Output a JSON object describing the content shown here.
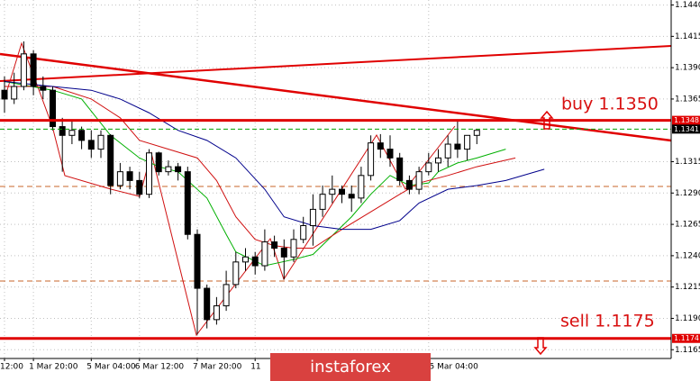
{
  "chart_data": {
    "type": "candlestick",
    "categories": [
      "12:00",
      null,
      null,
      "1 Mar 20:00",
      null,
      null,
      null,
      null,
      null,
      "5 Mar 04:00",
      null,
      null,
      null,
      null,
      "6 Mar 12:00",
      null,
      null,
      null,
      null,
      null,
      "7 Mar 20:00",
      null,
      null,
      null,
      null,
      null,
      "11",
      null,
      null,
      null,
      null,
      null,
      null,
      null,
      null,
      null,
      null,
      null,
      null,
      null,
      null,
      null,
      null,
      null,
      "15 Mar 04:00",
      null,
      null,
      null,
      null,
      null,
      null,
      null,
      null,
      null,
      null,
      null,
      null
    ],
    "open": [
      1.1372,
      1.1365,
      1.1375,
      1.1401,
      1.1375,
      1.1372,
      1.1343,
      1.1336,
      1.134,
      1.1332,
      1.1325,
      1.1336,
      1.1296,
      1.1307,
      1.13,
      1.1289,
      1.1322,
      1.1307,
      1.1311,
      1.1307,
      1.1257,
      1.1214,
      1.1189,
      1.12,
      1.1217,
      1.1235,
      1.1239,
      1.1232,
      1.1251,
      1.1246,
      1.1239,
      1.1253,
      1.1264,
      1.1277,
      1.1289,
      1.1293,
      1.1289,
      1.1286,
      1.1304,
      1.133,
      1.1325,
      1.1318,
      1.13,
      1.1293,
      1.1307,
      1.1314,
      1.1318,
      1.1329,
      1.1325,
      1.1336,
      null,
      null,
      null,
      null,
      null,
      null,
      null
    ],
    "high": [
      1.1383,
      1.1386,
      1.1411,
      1.1404,
      1.1383,
      1.1375,
      1.135,
      1.1347,
      1.1343,
      1.134,
      1.134,
      1.1337,
      1.1314,
      1.1311,
      1.1307,
      1.1325,
      1.1323,
      1.1316,
      1.1314,
      1.1311,
      1.1261,
      1.1217,
      1.1207,
      1.1228,
      1.1243,
      1.1246,
      1.1243,
      1.1261,
      1.1256,
      1.1253,
      1.1261,
      1.1271,
      1.1289,
      1.1296,
      1.1304,
      1.1296,
      1.1296,
      1.1311,
      1.1336,
      1.1337,
      1.1336,
      1.1322,
      1.1304,
      1.1311,
      1.1322,
      1.1325,
      1.1336,
      1.1347,
      1.1336,
      1.134,
      null,
      null,
      null,
      null,
      null,
      null,
      null
    ],
    "low": [
      1.1354,
      1.1361,
      1.1372,
      1.1368,
      1.1365,
      1.134,
      1.1307,
      1.1329,
      1.1325,
      1.1318,
      1.1318,
      1.1289,
      1.1293,
      1.1293,
      1.1286,
      1.1286,
      1.1304,
      1.1304,
      1.13,
      1.1253,
      1.1177,
      1.1182,
      1.1185,
      1.1196,
      1.1214,
      1.1228,
      1.1225,
      1.1228,
      1.1239,
      1.1221,
      1.1235,
      1.125,
      1.1248,
      1.1271,
      1.1282,
      1.1282,
      1.1275,
      1.1282,
      1.13,
      1.1318,
      1.1311,
      1.1296,
      1.1289,
      1.1289,
      1.1304,
      1.1307,
      1.1311,
      1.1318,
      1.1316,
      1.1329,
      null,
      null,
      null,
      null,
      null,
      null,
      null
    ],
    "close": [
      1.1365,
      1.1375,
      1.1401,
      1.1375,
      1.1372,
      1.1343,
      1.1336,
      1.134,
      1.1332,
      1.1325,
      1.1336,
      1.1296,
      1.1307,
      1.13,
      1.1289,
      1.1322,
      1.1307,
      1.1311,
      1.1307,
      1.1257,
      1.1214,
      1.1189,
      1.12,
      1.1217,
      1.1235,
      1.1239,
      1.1232,
      1.1251,
      1.1246,
      1.1239,
      1.1253,
      1.1264,
      1.1277,
      1.1289,
      1.1293,
      1.1289,
      1.1286,
      1.1304,
      1.133,
      1.1325,
      1.1318,
      1.13,
      1.1293,
      1.1307,
      1.1314,
      1.1318,
      1.1329,
      1.1325,
      1.1336,
      1.134,
      null,
      null,
      null,
      null,
      null,
      null,
      null
    ],
    "up_color": "#ffffff",
    "down_color": "#000000",
    "lines": [
      {
        "color": "#00b000",
        "x": [
          0,
          5,
          8,
          11,
          14,
          16,
          18,
          21,
          23,
          24,
          27,
          30,
          32,
          34,
          36,
          38,
          40,
          42,
          44,
          45,
          47,
          49,
          52
        ],
        "values": [
          1.1379,
          1.1372,
          1.1365,
          1.1336,
          1.1318,
          1.1311,
          1.1307,
          1.1286,
          1.1257,
          1.1243,
          1.1232,
          1.1237,
          1.1241,
          1.1256,
          1.1271,
          1.1289,
          1.1304,
          1.1296,
          1.1298,
          1.1307,
          1.1314,
          1.1318,
          1.1325
        ]
      },
      {
        "color": "#d01010",
        "x": [
          0,
          5,
          9,
          12,
          14,
          17,
          20,
          22,
          24,
          26,
          28,
          30,
          32,
          35,
          38,
          41,
          43,
          46,
          49,
          53
        ],
        "values": [
          1.1375,
          1.1375,
          1.1365,
          1.135,
          1.1332,
          1.1325,
          1.1318,
          1.13,
          1.1271,
          1.1253,
          1.1248,
          1.1246,
          1.1246,
          1.1261,
          1.1275,
          1.1289,
          1.1298,
          1.1304,
          1.1311,
          1.1318
        ]
      },
      {
        "color": "#00008b",
        "x": [
          0,
          5,
          9,
          12,
          15,
          18,
          21,
          24,
          27,
          29,
          32,
          35,
          38,
          41,
          43,
          46,
          49,
          52,
          56
        ],
        "values": [
          1.1379,
          1.1375,
          1.1372,
          1.1365,
          1.1354,
          1.134,
          1.1332,
          1.1318,
          1.1293,
          1.1271,
          1.1264,
          1.1261,
          1.1261,
          1.1268,
          1.1282,
          1.1293,
          1.1296,
          1.13,
          1.1309
        ]
      }
    ],
    "levels": [
      {
        "value": 1.1348,
        "color": "#e00000",
        "label_bg": "#e00000"
      },
      {
        "value": 1.1341,
        "color": "#00a000",
        "label_bg": "#000000"
      },
      {
        "value": 1.1174,
        "color": "#e00000",
        "label_bg": "#e00000"
      }
    ],
    "annotations": [
      "buy 1.1350",
      "sell 1.1175"
    ],
    "ylim": [
      1.1158,
      1.1444
    ],
    "yticks": [
      {
        "value": 1.144,
        "label": "1.1440"
      },
      1.1415,
      {
        "value": 1.139,
        "label": "1.1390"
      },
      1.1365,
      1.1315,
      {
        "value": 1.129,
        "label": "1.1290"
      },
      1.1265,
      {
        "value": 1.124,
        "label": "1.1240"
      },
      1.1215,
      {
        "value": 1.119,
        "label": "1.1190"
      },
      1.1165
    ],
    "grid": true,
    "watermark": "instaforex"
  }
}
